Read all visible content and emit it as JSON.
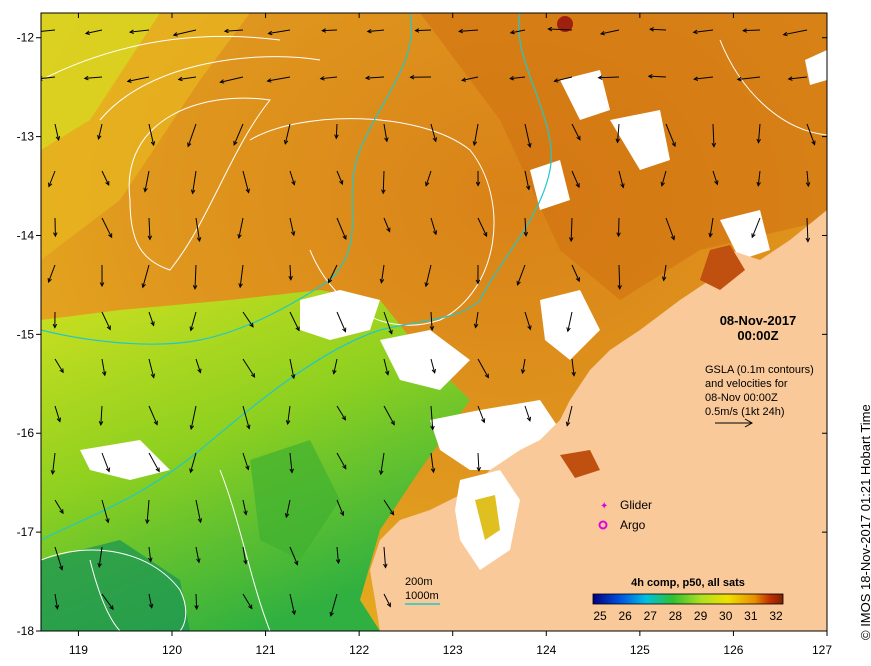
{
  "map": {
    "x_ticks": [
      "119",
      "120",
      "121",
      "122",
      "123",
      "124",
      "125",
      "126",
      "127"
    ],
    "y_ticks": [
      "-12",
      "-13",
      "-14",
      "-15",
      "-16",
      "-17",
      "-18"
    ],
    "lon_range": [
      118.6,
      127.0
    ],
    "lat_range": [
      -18.0,
      -11.75
    ]
  },
  "annotation": {
    "date": "08-Nov-2017",
    "time": "00:00Z",
    "gsla_line1": "GSLA (0.1m contours)",
    "gsla_line2": "and velocities for",
    "gsla_line3": "08-Nov 00:00Z",
    "gsla_line4": "0.5m/s (1kt 24h)"
  },
  "legend": {
    "glider": "Glider",
    "argo": "Argo",
    "glider_color": "#e000e0",
    "argo_color": "#e000e0"
  },
  "isobaths": {
    "label_200": "200m",
    "label_1000": "1000m",
    "color": "#20c8c8"
  },
  "colorbar": {
    "title": "4h comp, p50, all sats",
    "ticks": [
      "25",
      "26",
      "27",
      "28",
      "29",
      "30",
      "31",
      "32"
    ],
    "colors": [
      "#000080",
      "#0050e0",
      "#00c0e0",
      "#30c030",
      "#b0e020",
      "#f0e000",
      "#e89000",
      "#c03000",
      "#802000"
    ]
  },
  "credit": "© IMOS 18-Nov-2017 01:21 Hobart Time"
}
